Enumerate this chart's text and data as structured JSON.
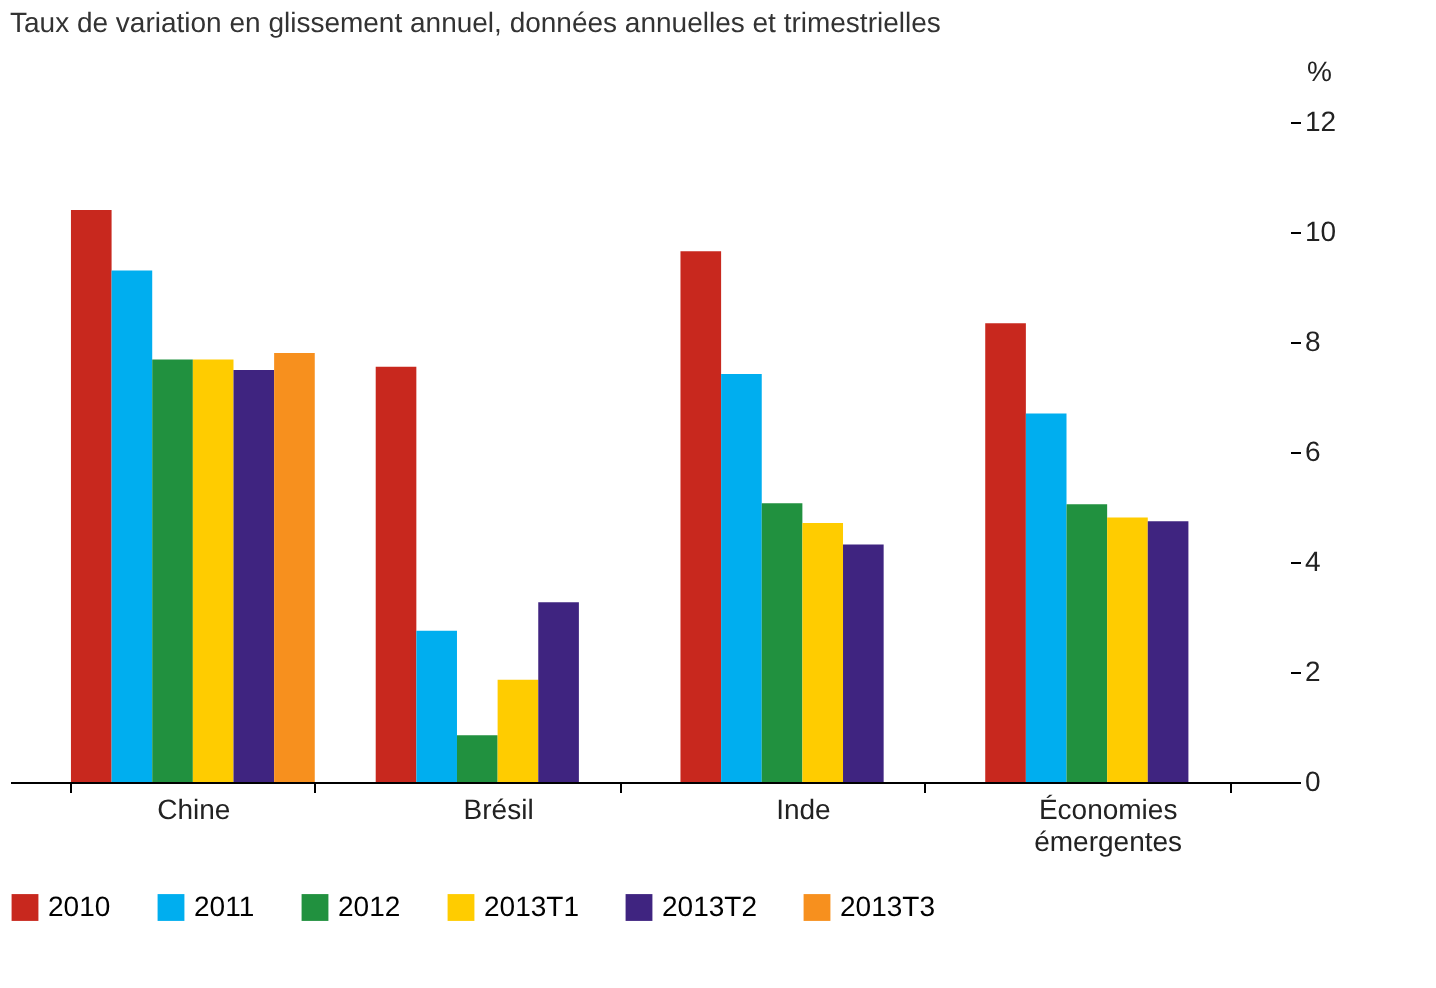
{
  "chart_data": {
    "type": "bar",
    "subtitle": "Taux de variation en glissement annuel, données annuelles et trimestrielles",
    "ylabel": "%",
    "categories": [
      "Chine",
      "Brésil",
      "Inde",
      "Économies émergentes"
    ],
    "series": [
      {
        "name": "2010",
        "color": "#c8281e",
        "values": [
          10.4,
          7.55,
          9.65,
          8.34
        ]
      },
      {
        "name": "2011",
        "color": "#00aeef",
        "values": [
          9.3,
          2.75,
          7.42,
          6.7
        ]
      },
      {
        "name": "2012",
        "color": "#21913f",
        "values": [
          7.68,
          0.85,
          5.07,
          5.05
        ]
      },
      {
        "name": "2013T1",
        "color": "#ffcc00",
        "values": [
          7.68,
          1.86,
          4.71,
          4.81
        ]
      },
      {
        "name": "2013T2",
        "color": "#3f2480",
        "values": [
          7.49,
          3.27,
          4.32,
          4.74
        ]
      },
      {
        "name": "2013T3",
        "color": "#f7901e",
        "values": [
          7.8,
          null,
          null,
          null
        ]
      }
    ],
    "ylim": [
      0,
      12
    ],
    "yticks": [
      0,
      2,
      4,
      6,
      8,
      10,
      12
    ],
    "grid": false,
    "legend": "bottom"
  }
}
